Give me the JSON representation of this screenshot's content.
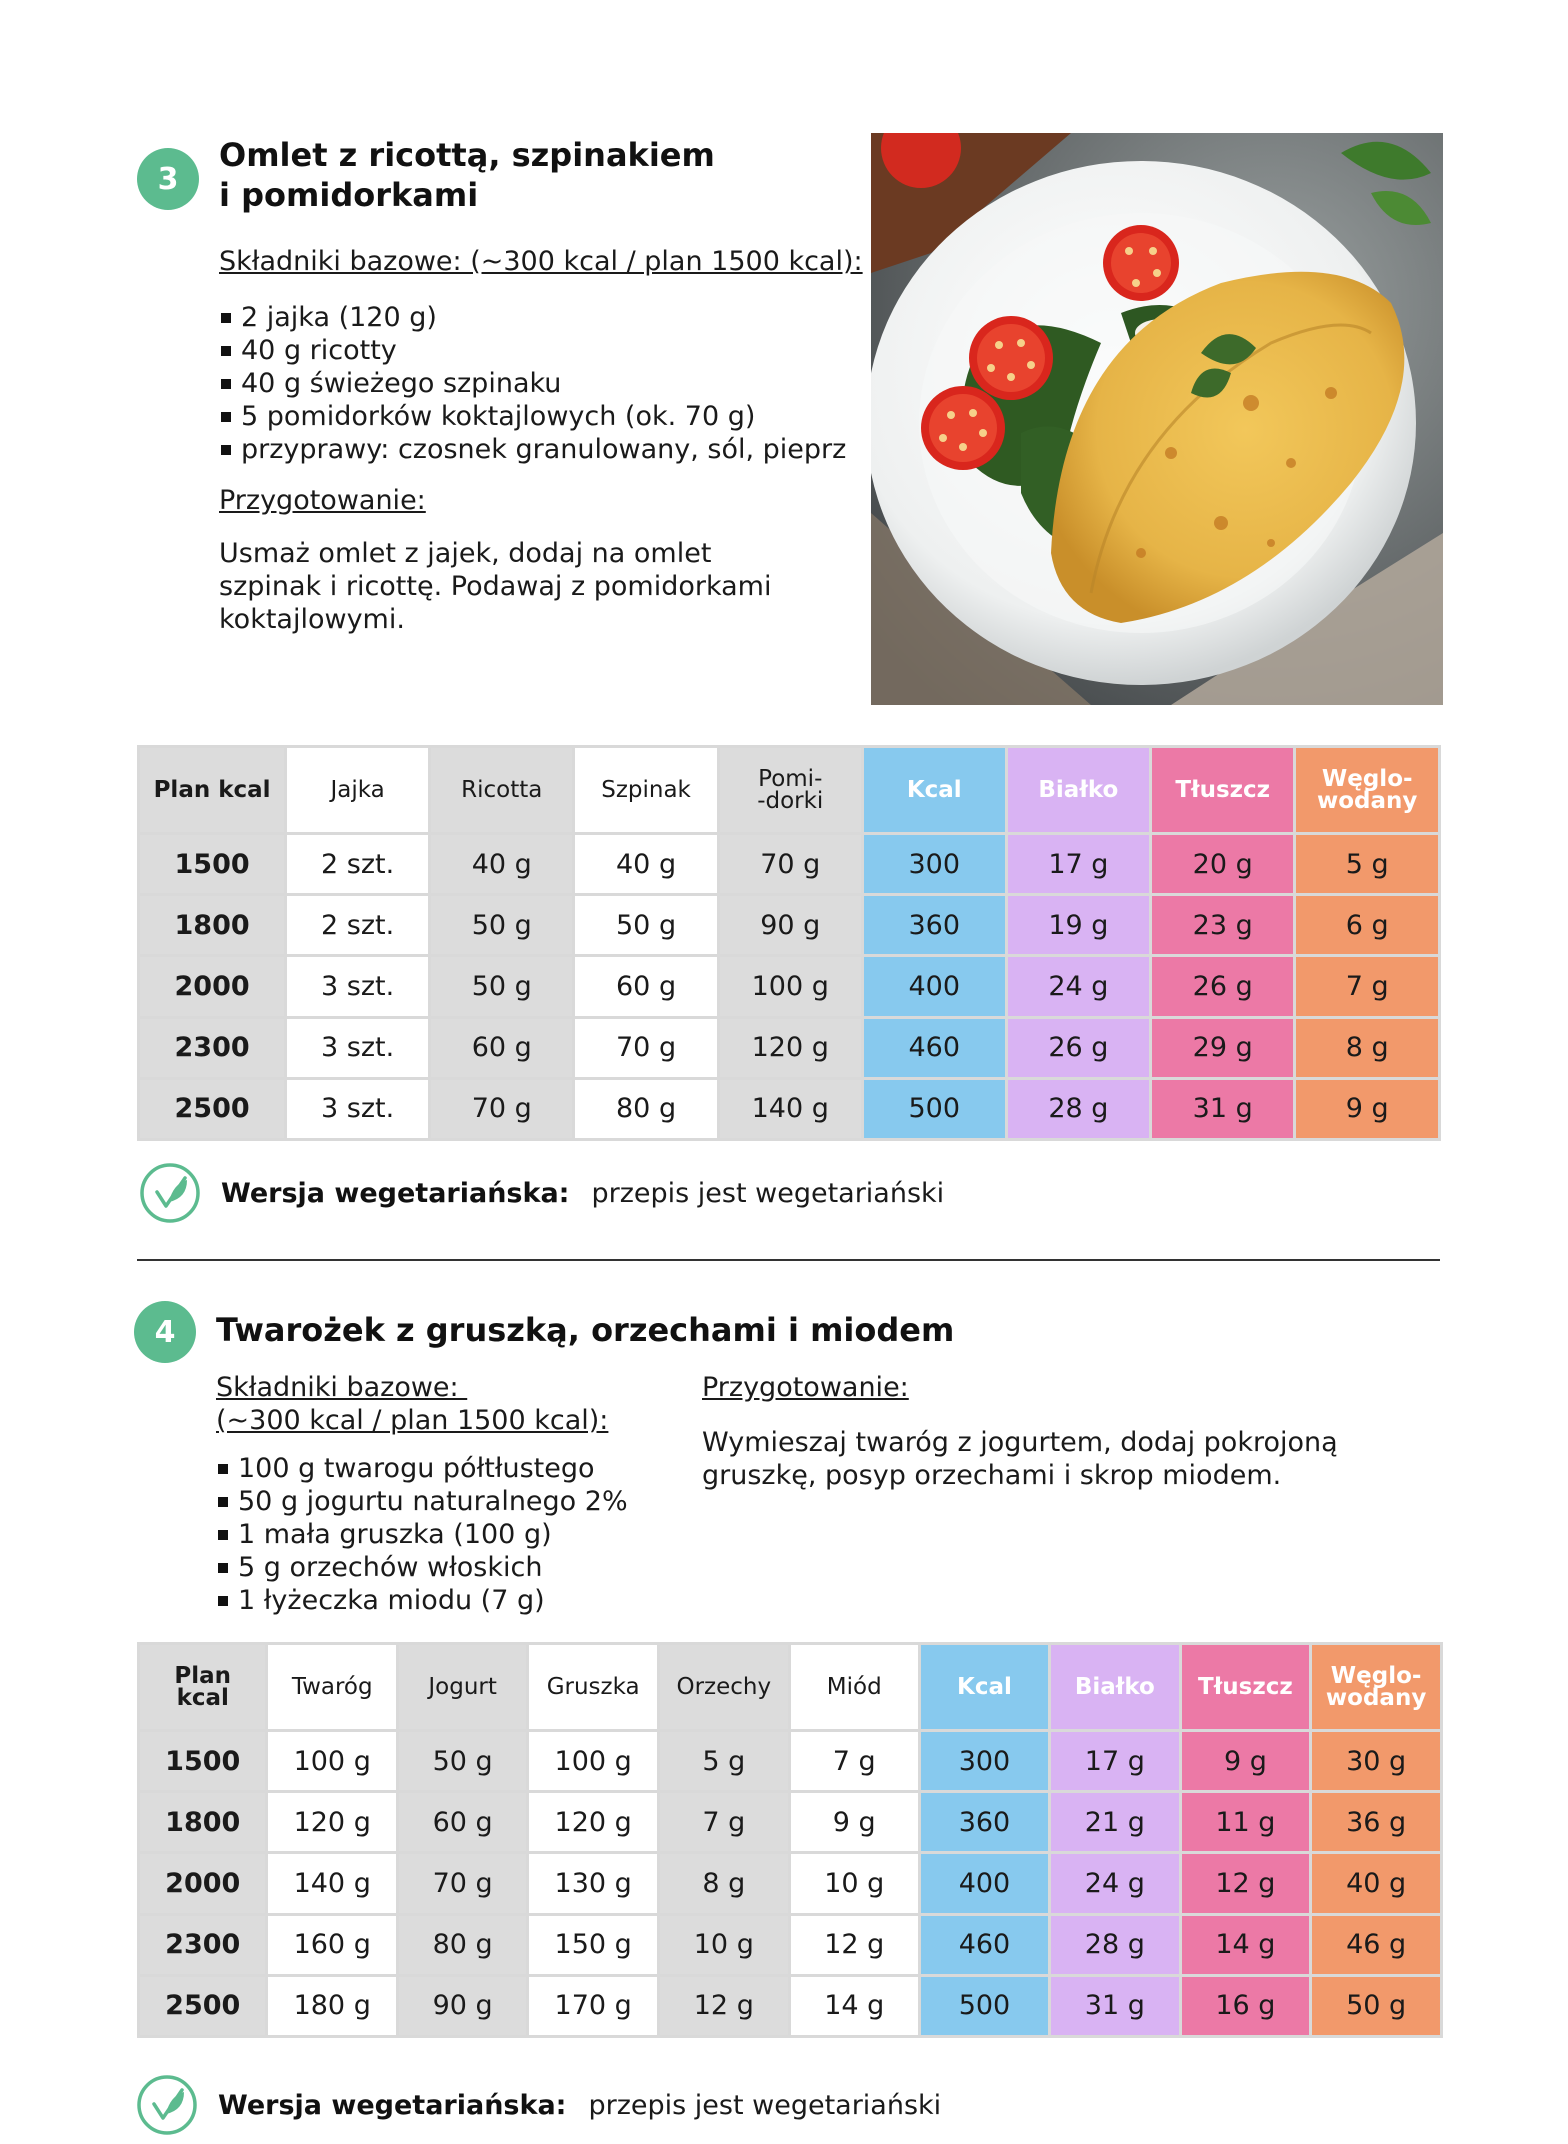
{
  "recipe3": {
    "number": "3",
    "title_line1": "Omlet z ricottą, szpinakiem",
    "title_line2": "i pomidorkami",
    "ingredients_label": "Składniki bazowe: (~300 kcal / plan 1500 kcal):",
    "ingredients": [
      "2 jajka (120 g)",
      "40 g ricotty",
      "40 g świeżego szpinaku",
      "5 pomidorków koktajlowych (ok. 70 g)",
      "przyprawy: czosnek granulowany, sól, pieprz"
    ],
    "prep_label": "Przygotowanie:",
    "prep_lines": [
      "Usmaż omlet z jajek, dodaj na omlet",
      "szpinak i ricottę. Podawaj z pomidorkami",
      "koktajlowymi."
    ],
    "table": {
      "headers": [
        "Plan kcal",
        "Jajka",
        "Ricotta",
        "Szpinak",
        "Pomi-\n-dorki",
        "Kcal",
        "Białko",
        "Tłuszcz",
        "Węglo-\nwodany"
      ],
      "rows": [
        [
          "1500",
          "2 szt.",
          "40 g",
          "40 g",
          "70 g",
          "300",
          "17 g",
          "20 g",
          "5 g"
        ],
        [
          "1800",
          "2 szt.",
          "50 g",
          "50 g",
          "90 g",
          "360",
          "19 g",
          "23 g",
          "6 g"
        ],
        [
          "2000",
          "3 szt.",
          "50 g",
          "60 g",
          "100 g",
          "400",
          "24 g",
          "26 g",
          "7 g"
        ],
        [
          "2300",
          "3 szt.",
          "60 g",
          "70 g",
          "120 g",
          "460",
          "26 g",
          "29 g",
          "8 g"
        ],
        [
          "2500",
          "3 szt.",
          "70 g",
          "80 g",
          "140 g",
          "500",
          "28 g",
          "31 g",
          "9 g"
        ]
      ]
    },
    "veg_label": "Wersja wegetariańska:",
    "veg_text": "przepis jest wegetariański"
  },
  "recipe4": {
    "number": "4",
    "title": "Twarożek z gruszką, orzechami i miodem",
    "ingredients_label_line1": "Składniki bazowe: ",
    "ingredients_label_line2": "(~300 kcal / plan 1500 kcal):",
    "ingredients": [
      "100 g twarogu półtłustego",
      "50 g jogurtu naturalnego 2%",
      "1 mała gruszka (100 g)",
      "5 g orzechów włoskich",
      "1 łyżeczka miodu (7 g)"
    ],
    "prep_label": "Przygotowanie:",
    "prep_lines": [
      "Wymieszaj twaróg z jogurtem, dodaj pokrojoną",
      "gruszkę, posyp orzechami i skrop miodem."
    ],
    "table": {
      "headers": [
        "Plan\nkcal",
        "Twaróg",
        "Jogurt",
        "Gruszka",
        "Orzechy",
        "Miód",
        "Kcal",
        "Białko",
        "Tłuszcz",
        "Węglo-\nwodany"
      ],
      "rows": [
        [
          "1500",
          "100 g",
          "50 g",
          "100 g",
          "5 g",
          "7 g",
          "300",
          "17 g",
          "9 g",
          "30 g"
        ],
        [
          "1800",
          "120 g",
          "60 g",
          "120 g",
          "7 g",
          "9 g",
          "360",
          "21 g",
          "11 g",
          "36 g"
        ],
        [
          "2000",
          "140 g",
          "70 g",
          "130 g",
          "8 g",
          "10 g",
          "400",
          "24 g",
          "12 g",
          "40 g"
        ],
        [
          "2300",
          "160 g",
          "80 g",
          "150 g",
          "10 g",
          "12 g",
          "460",
          "28 g",
          "14 g",
          "46 g"
        ],
        [
          "2500",
          "180 g",
          "90 g",
          "170 g",
          "12 g",
          "14 g",
          "500",
          "31 g",
          "16 g",
          "50 g"
        ]
      ]
    },
    "veg_label": "Wersja wegetariańska:",
    "veg_text": "przepis jest wegetariański"
  },
  "colors": {
    "badge": "#5cbb8f",
    "kcal": "#87c9ee",
    "bialko": "#d9b3f3",
    "tluszcz": "#ec79a6",
    "weglowodany": "#f2996b",
    "gray_cell": "#dcdcdc"
  },
  "icons": {
    "veg": "leaf-check-icon",
    "bullet": "square-bullet"
  }
}
